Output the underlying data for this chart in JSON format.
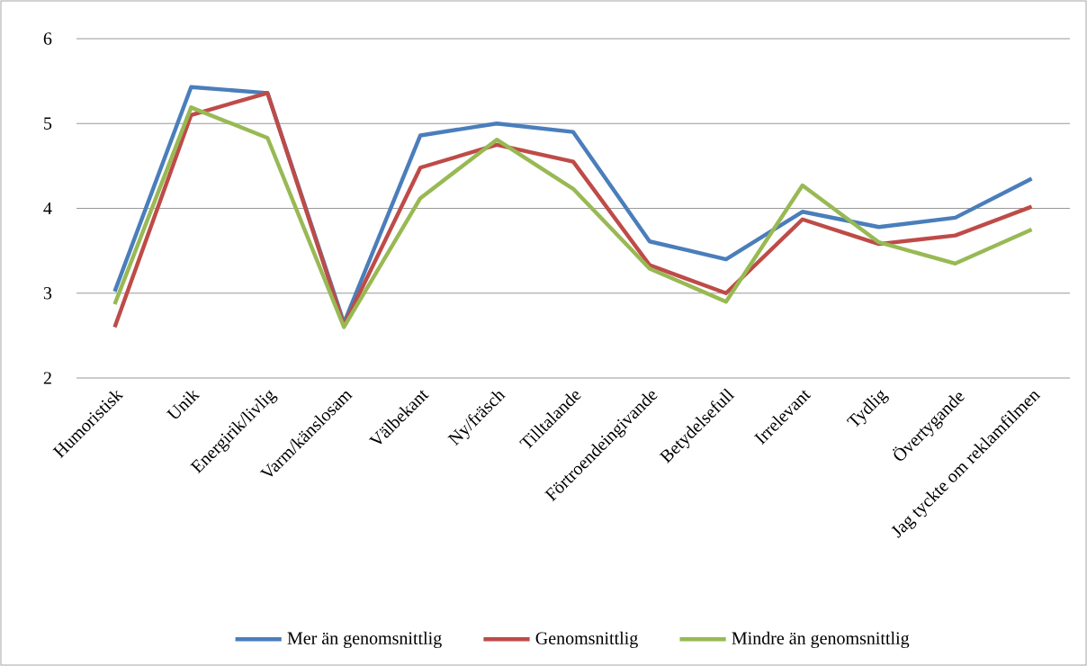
{
  "chart_data": {
    "type": "line",
    "categories": [
      "Humoristisk",
      "Unik",
      "Energirik/livlig",
      "Varm/känslosam",
      "Välbekant",
      "Ny/fräsch",
      "Tilltalande",
      "Förtroendeingivande",
      "Betydelsefull",
      "Irrelevant",
      "Tydlig",
      "Övertygande",
      "Jag tyckte om reklamfilmen"
    ],
    "series": [
      {
        "name": "Mer än genomsnittlig",
        "color": "#4a7ebb",
        "values": [
          3.02,
          5.43,
          5.36,
          2.65,
          4.86,
          5.0,
          4.9,
          3.61,
          3.4,
          3.96,
          3.78,
          3.89,
          4.35
        ]
      },
      {
        "name": "Genomsnittlig",
        "color": "#be4b48",
        "values": [
          2.6,
          5.1,
          5.36,
          2.62,
          4.48,
          4.75,
          4.55,
          3.33,
          3.0,
          3.87,
          3.58,
          3.68,
          4.02
        ]
      },
      {
        "name": "Mindre än genomsnittlig",
        "color": "#98b954",
        "values": [
          2.87,
          5.19,
          4.83,
          2.6,
          4.12,
          4.81,
          4.23,
          3.29,
          2.9,
          4.27,
          3.6,
          3.35,
          3.75
        ]
      }
    ],
    "ylim": [
      2,
      6
    ],
    "yticks": [
      2,
      3,
      4,
      5,
      6
    ],
    "grid": "y",
    "legend": "bottom",
    "marker": "none",
    "line_style": "solid"
  }
}
